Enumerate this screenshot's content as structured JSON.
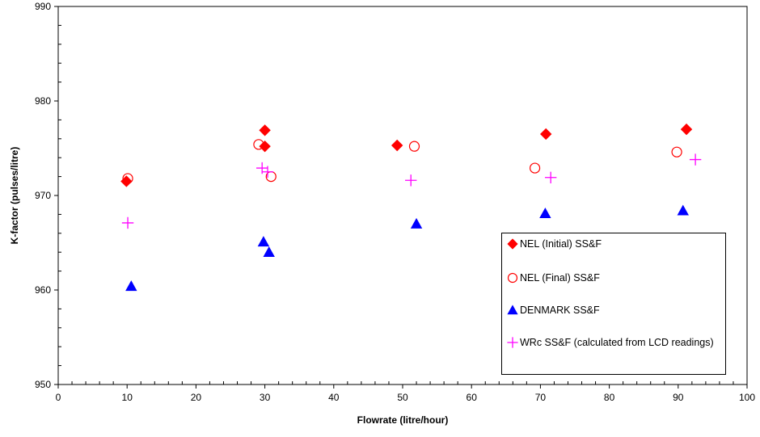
{
  "chart_data": {
    "type": "scatter",
    "title": "",
    "xlabel": "Flowrate (litre/hour)",
    "ylabel": "K-factor (pulses/litre)",
    "xlim": [
      0,
      100
    ],
    "ylim": [
      950,
      990
    ],
    "xticks": [
      0,
      10,
      20,
      30,
      40,
      50,
      60,
      70,
      80,
      90,
      100
    ],
    "yticks": [
      950,
      960,
      970,
      980,
      990
    ],
    "grid": false,
    "legend_position": "lower-right",
    "series": [
      {
        "name": "NEL (Initial) SS&F",
        "marker": "diamond",
        "color": "#ff0000",
        "points": [
          [
            9.9,
            971.5
          ],
          [
            30.0,
            976.9
          ],
          [
            30.0,
            975.2
          ],
          [
            49.2,
            975.3
          ],
          [
            70.8,
            976.5
          ],
          [
            91.2,
            977.0
          ]
        ]
      },
      {
        "name": "NEL (Final) SS&F",
        "marker": "circle-open",
        "color": "#ff0000",
        "points": [
          [
            10.1,
            971.8
          ],
          [
            29.1,
            975.4
          ],
          [
            30.9,
            972.0
          ],
          [
            51.7,
            975.2
          ],
          [
            69.2,
            972.9
          ],
          [
            89.8,
            974.6
          ]
        ]
      },
      {
        "name": "DENMARK SS&F",
        "marker": "triangle",
        "color": "#0000ff",
        "points": [
          [
            10.6,
            960.4
          ],
          [
            29.8,
            965.1
          ],
          [
            30.6,
            964.0
          ],
          [
            52.0,
            967.0
          ],
          [
            70.7,
            968.1
          ],
          [
            90.7,
            968.4
          ]
        ]
      },
      {
        "name": "WRc SS&F (calculated from LCD readings)",
        "marker": "plus",
        "color": "#ff00ff",
        "points": [
          [
            10.1,
            967.1
          ],
          [
            29.6,
            972.9
          ],
          [
            30.4,
            972.5
          ],
          [
            51.2,
            971.6
          ],
          [
            71.5,
            971.9
          ],
          [
            92.5,
            973.8
          ]
        ]
      }
    ]
  }
}
